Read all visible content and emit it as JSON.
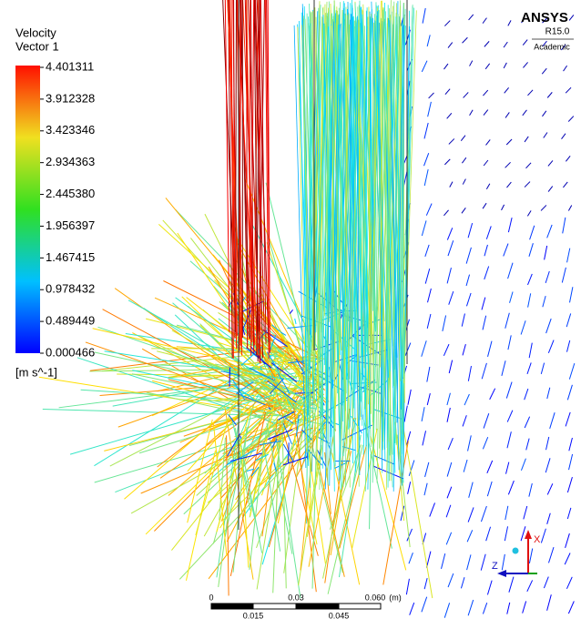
{
  "legend": {
    "title": "Velocity",
    "subtitle": "Vector 1",
    "ticks": [
      "4.401311",
      "3.912328",
      "3.423346",
      "2.934363",
      "2.445380",
      "1.956397",
      "1.467415",
      "0.978432",
      "0.489449",
      "0.000466"
    ],
    "unit": "[m s^-1]"
  },
  "logo": {
    "name": "ANSYS",
    "version": "R15.0",
    "edition": "Academic"
  },
  "scale_bar": {
    "labels": [
      "0",
      "0.03",
      "0.060",
      "(m)"
    ],
    "sub_labels": [
      "0.015",
      "0.045"
    ]
  },
  "axes": {
    "x": "X",
    "z": "Z"
  }
}
